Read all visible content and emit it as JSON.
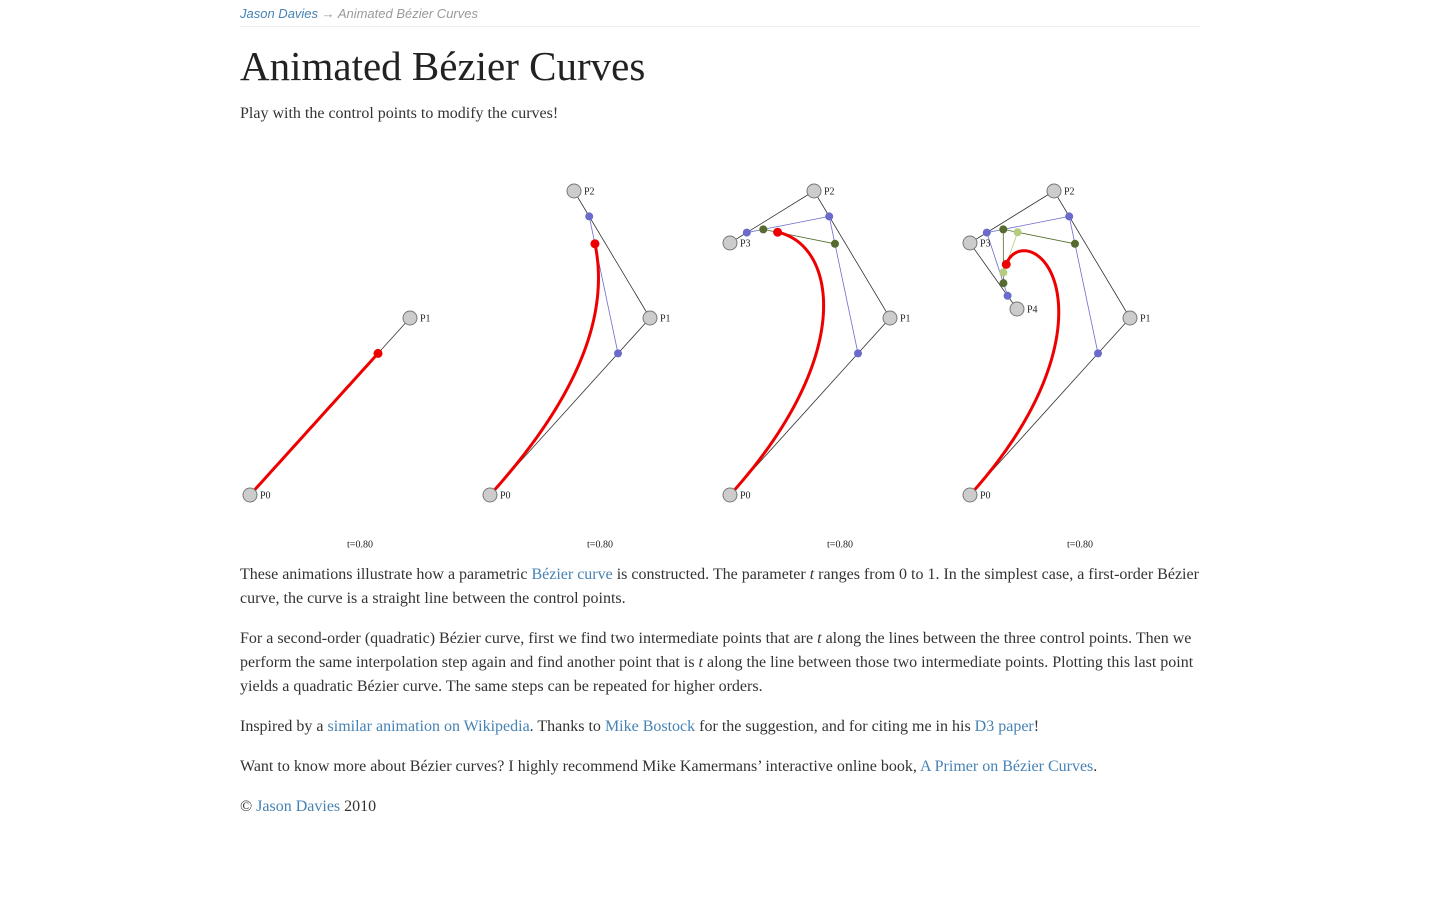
{
  "breadcrumb": {
    "home": "Jason Davies",
    "separator": "→",
    "current": "Animated Bézier Curves"
  },
  "title": "Animated Bézier Curves",
  "intro": "Play with the control points to modify the curves!",
  "figures": [
    {
      "points": [
        "P0",
        "P1"
      ],
      "t": {
        "value": 0.8,
        "label": "t=0.80"
      }
    },
    {
      "points": [
        "P0",
        "P1",
        "P2"
      ],
      "t": {
        "value": 0.8,
        "label": "t=0.80"
      }
    },
    {
      "points": [
        "P0",
        "P1",
        "P2",
        "P3"
      ],
      "t": {
        "value": 0.8,
        "label": "t=0.80"
      }
    },
    {
      "points": [
        "P0",
        "P1",
        "P2",
        "P3",
        "P4"
      ],
      "t": {
        "value": 0.8,
        "label": "t=0.80"
      }
    }
  ],
  "paragraphs": [
    [
      "These animations illustrate how a parametric ",
      "Bézier curve",
      " is constructed. The parameter ",
      "t",
      " ranges from 0 to 1. In the simplest case, a first-order Bézier curve, the curve is a straight line between the control points."
    ],
    [
      "For a second-order (quadratic) Bézier curve, first we find two intermediate points that are ",
      "t",
      " along the lines between the three control points. Then we perform the same interpolation step again and find another point that is ",
      "t",
      " along the line between those two intermediate points. Plotting this last point yields a quadratic Bézier curve. The same steps can be repeated for higher orders."
    ],
    [
      "Inspired by a ",
      "similar animation on Wikipedia",
      ". Thanks to ",
      "Mike Bostock",
      " for the suggestion, and for citing me in his ",
      "D3 paper",
      "!"
    ],
    [
      "Want to know more about Bézier curves? I highly recommend Mike Kamermans’ interactive online book, ",
      "A Primer on Bézier Curves",
      "."
    ]
  ],
  "footer": [
    "© ",
    "Jason Davies",
    " 2010"
  ]
}
